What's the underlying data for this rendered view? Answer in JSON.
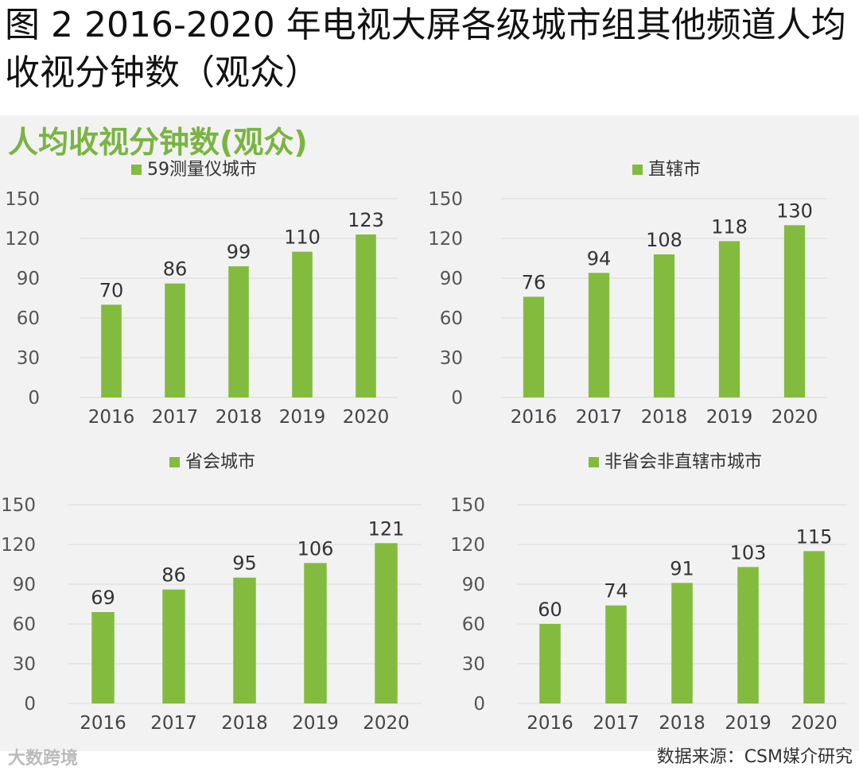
{
  "figure": {
    "title": "图 2 2016-2020 年电视大屏各级城市组其他频道人均收视分钟数（观众）",
    "heading": "人均收视分钟数(观众)"
  },
  "footer": {
    "source": "数据来源：CSM媒介研究",
    "watermark": "大数跨境"
  },
  "colors": {
    "bar": "#83bb3f",
    "grid": "#d9d9d9",
    "panel_bg": "#f2f2f2",
    "heading": "#7ab441"
  },
  "chart_data": [
    {
      "type": "bar",
      "title": "",
      "legend": "59测量仪城市",
      "categories": [
        "2016",
        "2017",
        "2018",
        "2019",
        "2020"
      ],
      "values": [
        70,
        86,
        99,
        110,
        123
      ],
      "yticks": [
        "0",
        "30",
        "60",
        "90",
        "120",
        "150"
      ],
      "ylim": [
        0,
        150
      ],
      "xlabel": "",
      "ylabel": ""
    },
    {
      "type": "bar",
      "title": "",
      "legend": "直辖市",
      "categories": [
        "2016",
        "2017",
        "2018",
        "2019",
        "2020"
      ],
      "values": [
        76,
        94,
        108,
        118,
        130
      ],
      "yticks": [
        "0",
        "30",
        "60",
        "90",
        "120",
        "150"
      ],
      "ylim": [
        0,
        150
      ],
      "xlabel": "",
      "ylabel": ""
    },
    {
      "type": "bar",
      "title": "",
      "legend": "省会城市",
      "categories": [
        "2016",
        "2017",
        "2018",
        "2019",
        "2020"
      ],
      "values": [
        69,
        86,
        95,
        106,
        121
      ],
      "yticks": [
        "0",
        "30",
        "60",
        "90",
        "120",
        "150"
      ],
      "ylim": [
        0,
        150
      ],
      "xlabel": "",
      "ylabel": ""
    },
    {
      "type": "bar",
      "title": "",
      "legend": "非省会非直辖市城市",
      "categories": [
        "2016",
        "2017",
        "2018",
        "2019",
        "2020"
      ],
      "values": [
        60,
        74,
        91,
        103,
        115
      ],
      "yticks": [
        "0",
        "30",
        "60",
        "90",
        "120",
        "150"
      ],
      "ylim": [
        0,
        150
      ],
      "xlabel": "",
      "ylabel": ""
    }
  ]
}
